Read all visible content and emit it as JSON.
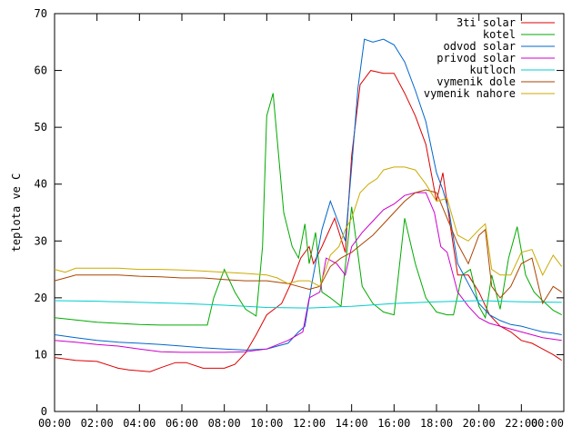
{
  "chart_data": {
    "type": "line",
    "title": "",
    "xlabel": "",
    "ylabel": "teplota ve C",
    "ylim": [
      0,
      70
    ],
    "xlim": [
      0,
      24
    ],
    "grid": false,
    "legend_position": "top-right",
    "x_ticks": [
      "00:00",
      "02:00",
      "04:00",
      "06:00",
      "08:00",
      "10:00",
      "12:00",
      "14:00",
      "16:00",
      "18:00",
      "20:00",
      "22:00",
      "00:00"
    ],
    "y_ticks": [
      "0",
      "10",
      "20",
      "30",
      "40",
      "50",
      "60",
      "70"
    ],
    "series": [
      {
        "name": "3ti solar",
        "color": "#dd0000",
        "x": [
          0,
          1,
          2,
          3,
          3.5,
          4.5,
          5,
          5.7,
          6.2,
          7,
          8,
          8.5,
          9,
          9.5,
          10,
          10.7,
          11.2,
          11.6,
          12,
          12.2,
          12.6,
          13.2,
          13.7,
          14,
          14.4,
          14.9,
          15.5,
          16,
          16.5,
          17,
          17.5,
          18,
          18.3,
          18.6,
          19,
          19.5,
          20,
          20.5,
          21,
          21.5,
          22,
          22.5,
          23,
          23.5,
          23.9
        ],
        "values": [
          9.5,
          9,
          8.8,
          7.6,
          7.3,
          7,
          7.7,
          8.6,
          8.6,
          7.6,
          7.6,
          8.3,
          10.3,
          13.5,
          17,
          19,
          23,
          27,
          29,
          26,
          29,
          34,
          28,
          45,
          57.5,
          60,
          59.5,
          59.5,
          56,
          52,
          47,
          37,
          42,
          34,
          24,
          24,
          21,
          17,
          15,
          14,
          12.5,
          12,
          11,
          10,
          9
        ]
      },
      {
        "name": "kotel",
        "color": "#00aa00",
        "x": [
          0,
          1,
          2,
          3,
          4,
          5,
          6,
          7.2,
          7.5,
          8,
          8.5,
          9,
          9.5,
          9.8,
          10,
          10.3,
          10.8,
          11.2,
          11.5,
          11.8,
          12,
          12.3,
          12.6,
          13,
          13.5,
          14,
          14.5,
          15,
          15.5,
          16,
          16.5,
          17,
          17.5,
          18,
          18.5,
          18.8,
          19.2,
          19.6,
          20,
          20.3,
          20.6,
          21,
          21.4,
          21.8,
          22.2,
          22.6,
          23,
          23.5,
          23.9
        ],
        "values": [
          16.5,
          16.1,
          15.7,
          15.5,
          15.3,
          15.2,
          15.2,
          15.2,
          20,
          25,
          21,
          18,
          16.8,
          29,
          52,
          56,
          35,
          29,
          27,
          33,
          26,
          31.5,
          21,
          20,
          18.5,
          36,
          22,
          19,
          17.5,
          17,
          34,
          26,
          20,
          17.5,
          17,
          17,
          24,
          25,
          18.5,
          16.5,
          24,
          18,
          27,
          32.5,
          24,
          21,
          19.5,
          17.8,
          17
        ]
      },
      {
        "name": "odvod solar",
        "color": "#0066cc",
        "x": [
          0,
          1,
          2,
          3,
          4,
          5,
          6,
          7,
          8,
          9,
          10,
          11,
          11.5,
          11.8,
          12.1,
          12.6,
          13,
          13.4,
          13.7,
          14,
          14.3,
          14.6,
          15,
          15.5,
          16,
          16.5,
          17,
          17.5,
          18,
          18.3,
          18.6,
          19,
          19.5,
          20,
          20.5,
          21,
          21.5,
          22,
          22.5,
          23,
          23.5,
          23.9
        ],
        "values": [
          13.5,
          13,
          12.5,
          12.2,
          12,
          11.8,
          11.5,
          11.2,
          11,
          10.8,
          11,
          12,
          14,
          15,
          22,
          32,
          37,
          33,
          30,
          43,
          57,
          65.5,
          65,
          65.5,
          64.5,
          61.5,
          56.5,
          51,
          42,
          39,
          35,
          26,
          22.5,
          19,
          17,
          16,
          15.3,
          15,
          14.5,
          14,
          13.8,
          13.5
        ]
      },
      {
        "name": "privod solar",
        "color": "#cc00cc",
        "x": [
          0,
          1,
          2,
          3,
          4,
          5,
          6,
          7,
          8,
          9,
          10,
          11,
          11.7,
          12,
          12.5,
          12.8,
          13.3,
          13.7,
          14,
          14.5,
          15,
          15.5,
          16,
          16.5,
          17,
          17.5,
          17.9,
          18.2,
          18.5,
          19,
          19.5,
          20,
          20.5,
          21,
          22,
          23,
          23.9
        ],
        "values": [
          12.5,
          12.2,
          11.8,
          11.5,
          11,
          10.5,
          10.4,
          10.4,
          10.4,
          10.5,
          11,
          12.5,
          14,
          20,
          21,
          27,
          26,
          24,
          29,
          31.5,
          33.5,
          35.5,
          36.5,
          38,
          38.5,
          38.5,
          35,
          29,
          28,
          21,
          18.5,
          16.5,
          15.5,
          15,
          14,
          13,
          12.5
        ]
      },
      {
        "name": "kutloch",
        "color": "#00cccc",
        "x": [
          0,
          2,
          4,
          6,
          8,
          10,
          12,
          14,
          16,
          18,
          20,
          22,
          23.9
        ],
        "values": [
          19.5,
          19.4,
          19.2,
          19,
          18.7,
          18.3,
          18.2,
          18.5,
          19,
          19.3,
          19.5,
          19.3,
          19.2
        ]
      },
      {
        "name": "vymenik dole",
        "color": "#aa4400",
        "x": [
          0,
          0.5,
          1,
          2,
          3,
          4,
          5,
          6,
          7,
          8,
          9,
          10,
          11,
          11.5,
          12,
          12.5,
          13,
          13.5,
          14,
          14.5,
          15,
          15.5,
          16,
          16.5,
          17,
          17.5,
          18,
          18.5,
          19,
          19.5,
          20,
          20.3,
          20.6,
          21,
          21.5,
          22,
          22.5,
          23,
          23.5,
          23.9
        ],
        "values": [
          23,
          23.5,
          24,
          24,
          24,
          23.8,
          23.7,
          23.5,
          23.5,
          23.2,
          23,
          23,
          22.5,
          22,
          21.5,
          22,
          25.5,
          27,
          28,
          29.5,
          31,
          33,
          35,
          37,
          38.5,
          39,
          38.5,
          34,
          29.5,
          26,
          31,
          32,
          22,
          20,
          22,
          26,
          27,
          19,
          22,
          21
        ]
      },
      {
        "name": "vymenik nahore",
        "color": "#ccaa00",
        "x": [
          0,
          0.5,
          1,
          2,
          3,
          4,
          5,
          6,
          7,
          8,
          9,
          10,
          10.5,
          11,
          11.5,
          12,
          12.5,
          13,
          13.4,
          13.7,
          14,
          14.4,
          14.8,
          15.2,
          15.5,
          16,
          16.5,
          17,
          17.5,
          18,
          18.5,
          19,
          19.5,
          20,
          20.3,
          20.6,
          21,
          21.5,
          22,
          22.5,
          23,
          23.5,
          23.9
        ],
        "values": [
          25,
          24.5,
          25.2,
          25.2,
          25.2,
          25,
          25,
          24.9,
          24.7,
          24.5,
          24.3,
          24,
          23.5,
          22.5,
          23,
          23,
          22,
          27.5,
          29,
          32,
          34,
          38.5,
          40,
          41,
          42.5,
          43,
          43,
          42.5,
          40,
          37,
          37.5,
          31,
          30,
          32,
          33,
          25,
          24,
          24,
          28,
          28.5,
          24,
          27.5,
          25.5
        ]
      }
    ]
  }
}
